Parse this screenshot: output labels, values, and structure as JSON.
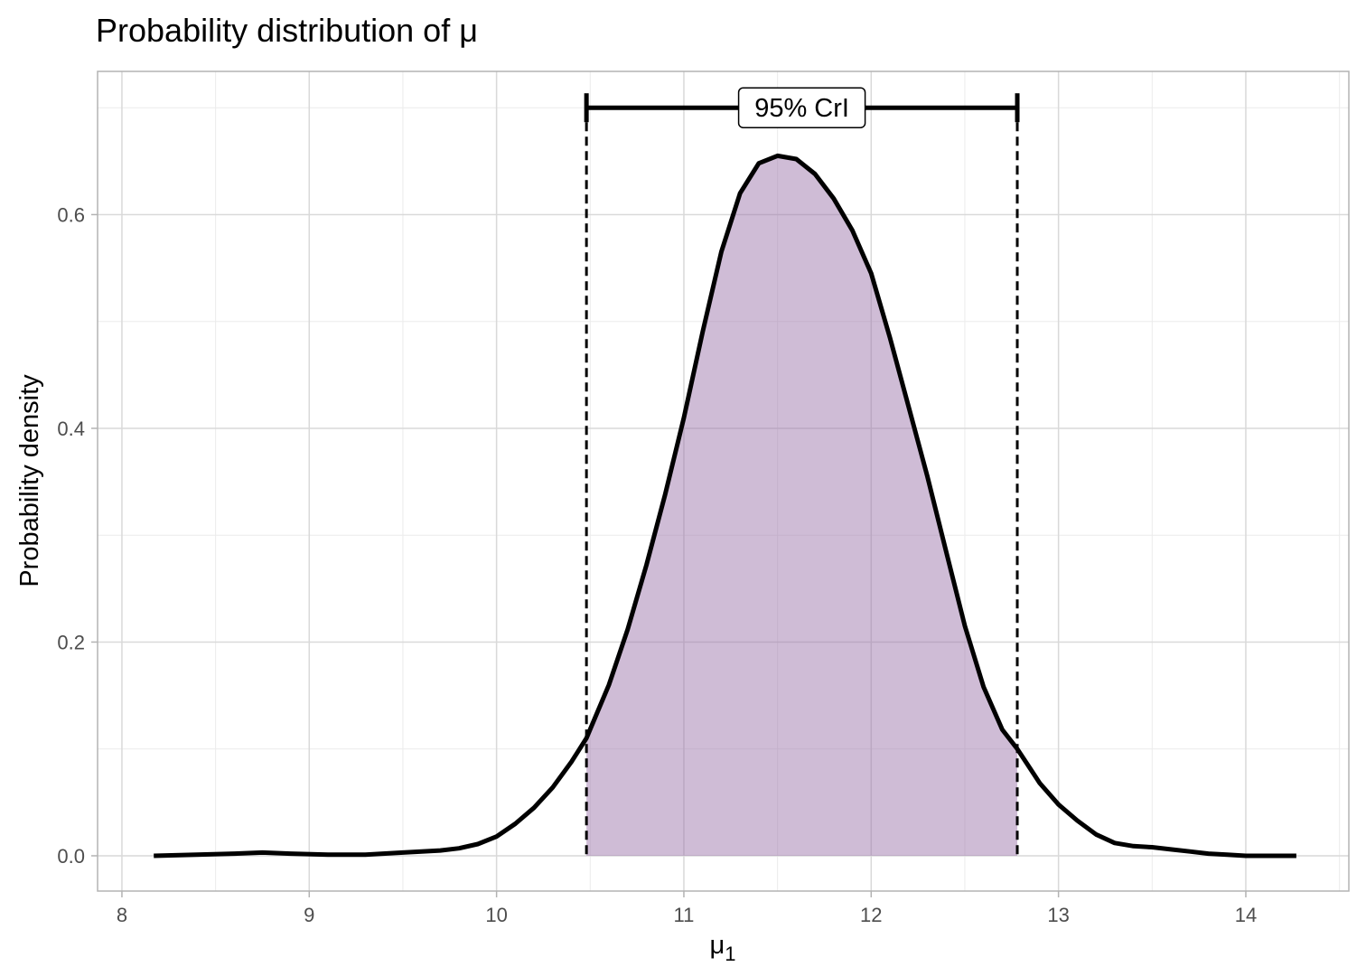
{
  "chart_data": {
    "type": "area",
    "title": "Probability distribution of μ",
    "xlabel_main": "μ",
    "xlabel_sub": "1",
    "ylabel": "Probability density",
    "xlim": [
      7.87,
      14.55
    ],
    "ylim": [
      -0.033,
      0.734
    ],
    "x_ticks": [
      8,
      9,
      10,
      11,
      12,
      13,
      14
    ],
    "x_tick_labels": [
      "8",
      "9",
      "10",
      "11",
      "12",
      "13",
      "14"
    ],
    "y_ticks": [
      0.0,
      0.2,
      0.4,
      0.6
    ],
    "y_tick_labels": [
      "0.0",
      "0.2",
      "0.4",
      "0.6"
    ],
    "grid": true,
    "ci": {
      "label": "95% CrI",
      "lower": 10.48,
      "upper": 12.78,
      "bar_y": 0.7
    },
    "density": [
      [
        8.17,
        0.0
      ],
      [
        8.4,
        0.001
      ],
      [
        8.6,
        0.002
      ],
      [
        8.75,
        0.003
      ],
      [
        8.9,
        0.002
      ],
      [
        9.1,
        0.001
      ],
      [
        9.3,
        0.001
      ],
      [
        9.5,
        0.003
      ],
      [
        9.7,
        0.005
      ],
      [
        9.8,
        0.007
      ],
      [
        9.9,
        0.011
      ],
      [
        10.0,
        0.018
      ],
      [
        10.1,
        0.03
      ],
      [
        10.2,
        0.045
      ],
      [
        10.3,
        0.064
      ],
      [
        10.4,
        0.088
      ],
      [
        10.48,
        0.11
      ],
      [
        10.6,
        0.16
      ],
      [
        10.7,
        0.212
      ],
      [
        10.8,
        0.272
      ],
      [
        10.9,
        0.338
      ],
      [
        11.0,
        0.41
      ],
      [
        11.1,
        0.49
      ],
      [
        11.2,
        0.565
      ],
      [
        11.3,
        0.62
      ],
      [
        11.4,
        0.648
      ],
      [
        11.5,
        0.655
      ],
      [
        11.6,
        0.652
      ],
      [
        11.7,
        0.638
      ],
      [
        11.8,
        0.615
      ],
      [
        11.9,
        0.585
      ],
      [
        12.0,
        0.545
      ],
      [
        12.1,
        0.485
      ],
      [
        12.2,
        0.42
      ],
      [
        12.3,
        0.355
      ],
      [
        12.4,
        0.285
      ],
      [
        12.5,
        0.215
      ],
      [
        12.6,
        0.158
      ],
      [
        12.7,
        0.118
      ],
      [
        12.78,
        0.1
      ],
      [
        12.9,
        0.068
      ],
      [
        13.0,
        0.048
      ],
      [
        13.1,
        0.033
      ],
      [
        13.2,
        0.02
      ],
      [
        13.3,
        0.012
      ],
      [
        13.4,
        0.009
      ],
      [
        13.5,
        0.008
      ],
      [
        13.6,
        0.006
      ],
      [
        13.7,
        0.004
      ],
      [
        13.8,
        0.002
      ],
      [
        13.9,
        0.001
      ],
      [
        14.0,
        0.0
      ],
      [
        14.27,
        0.0
      ]
    ],
    "fill_color": "#9b72aa",
    "fill_opacity": 0.48,
    "line_color": "#000000"
  }
}
